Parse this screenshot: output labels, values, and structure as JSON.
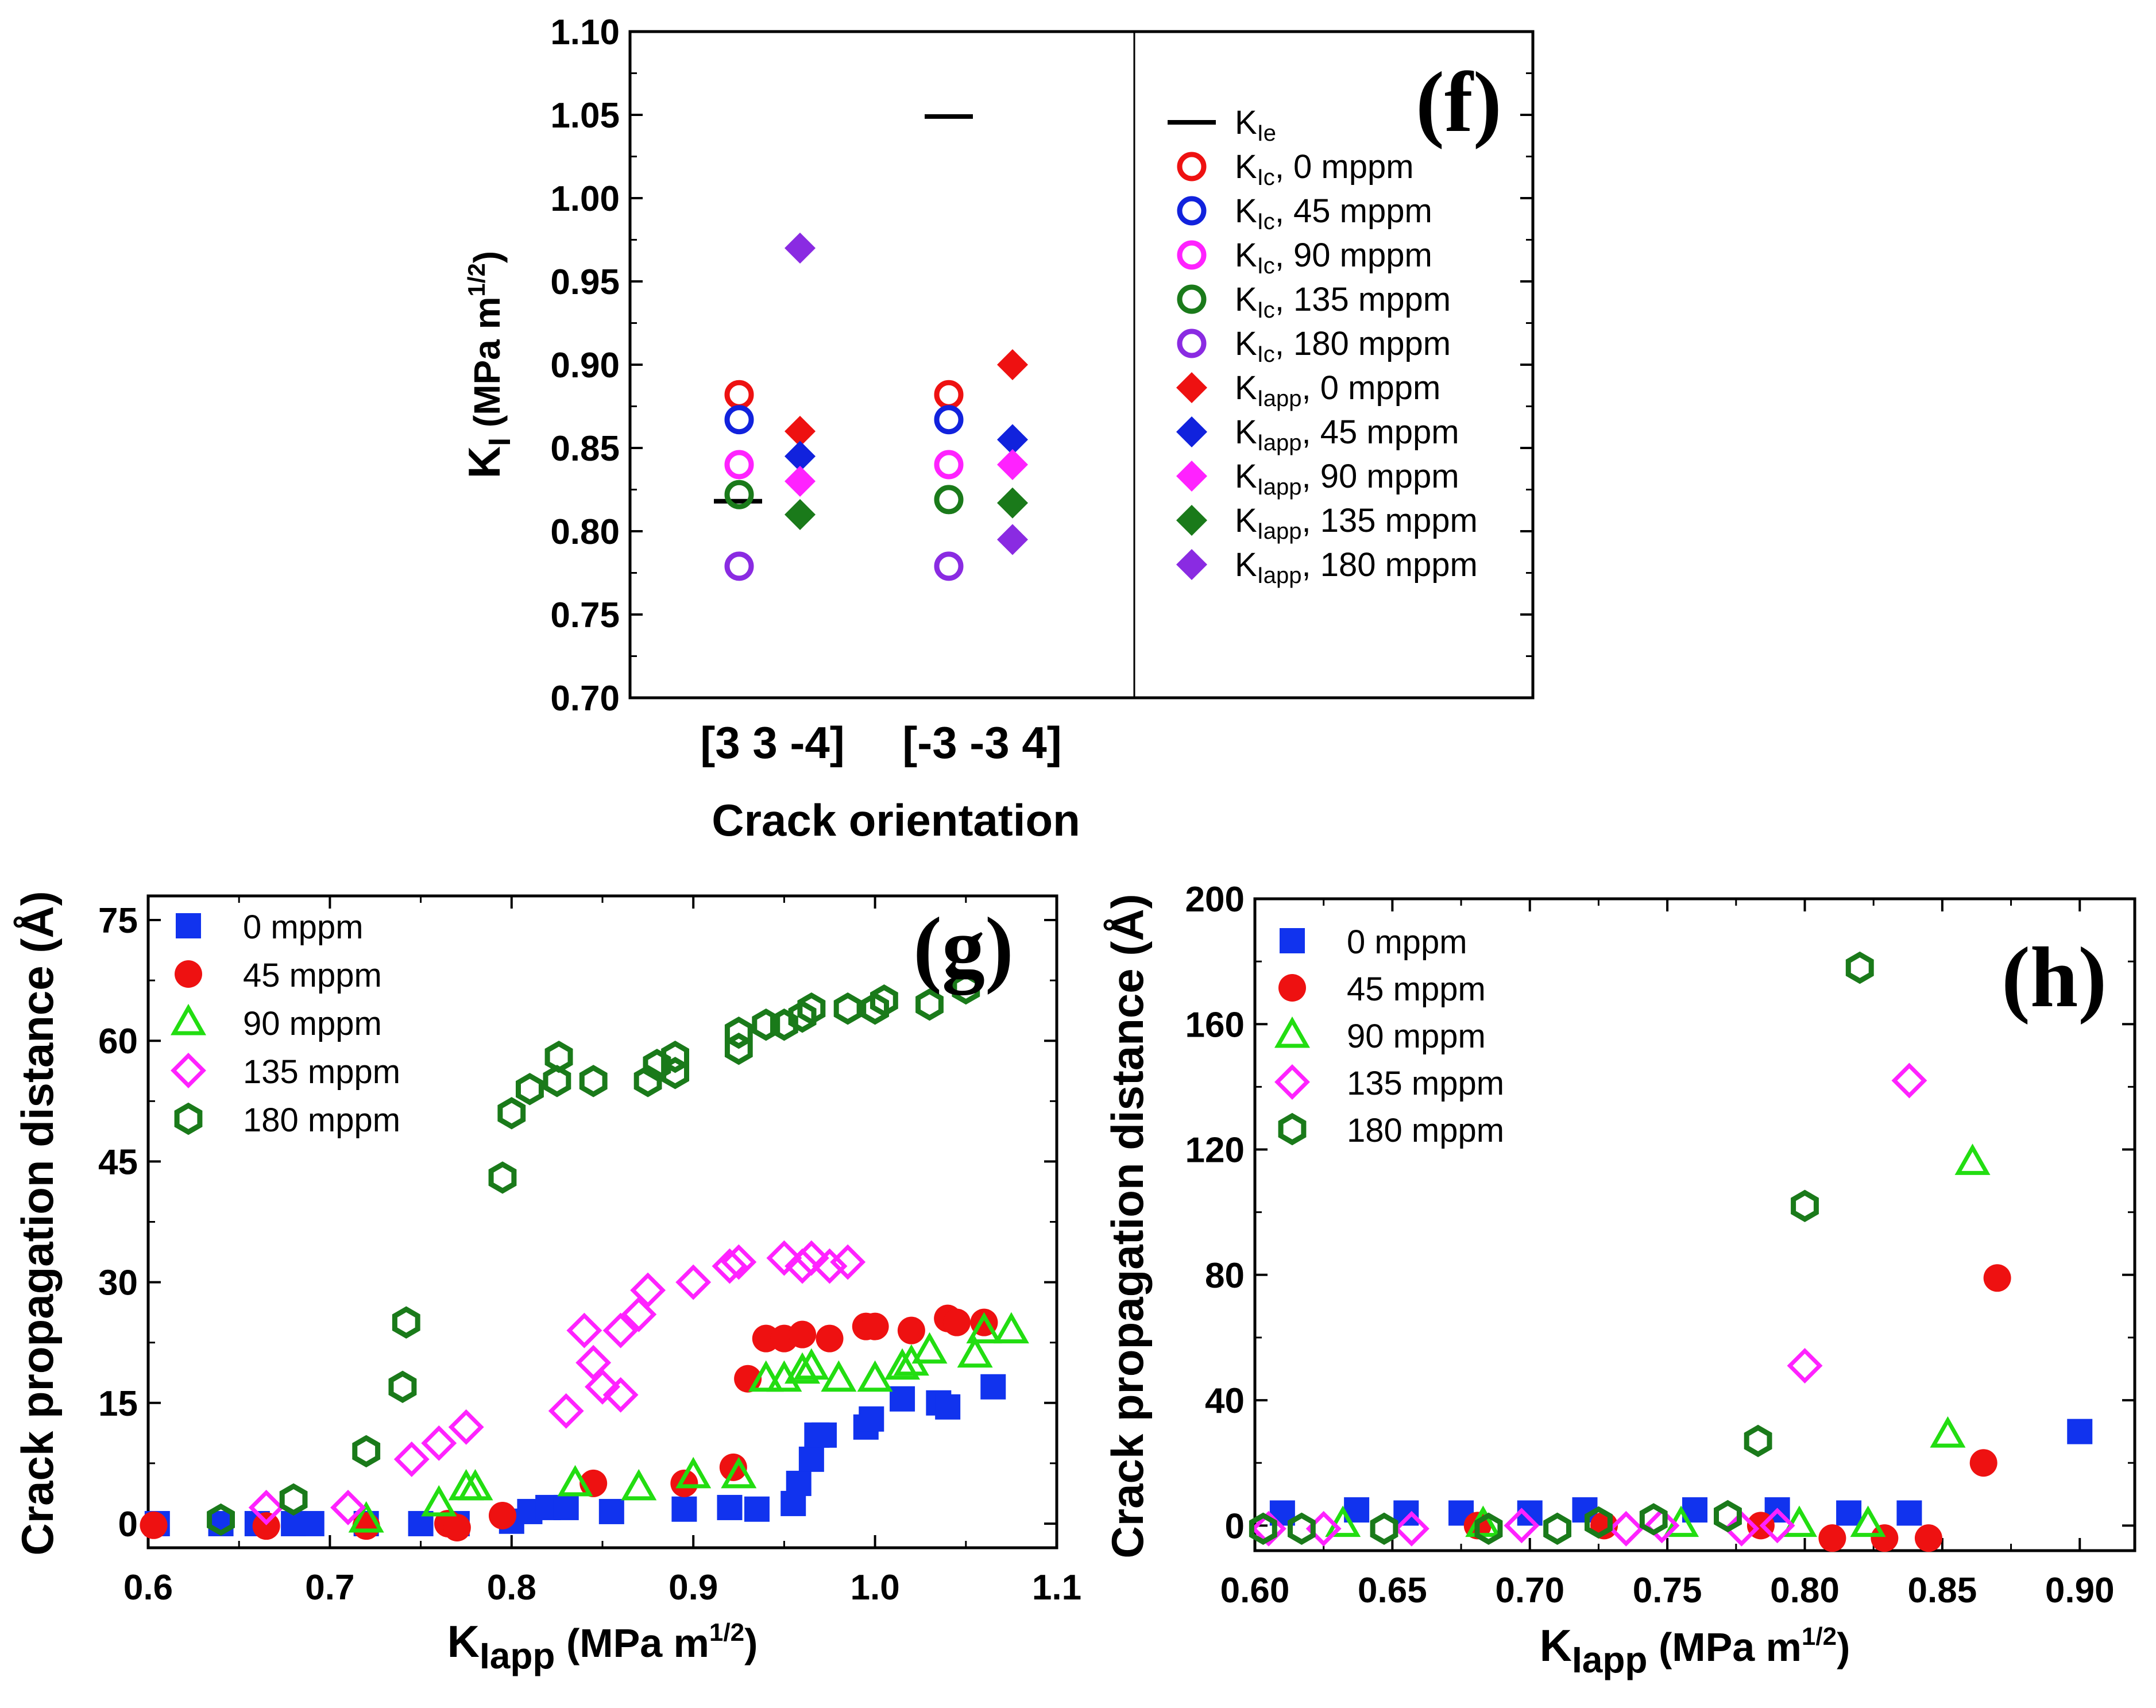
{
  "chart_data": [
    {
      "id": "f",
      "type": "scatter",
      "panel_label": "(f)",
      "xlabel": "Crack orientation",
      "ylabel_main": "K",
      "ylabel_sub": "I",
      "ylabel_units": " (MPa m",
      "ylabel_exp": "1/2",
      "ylabel_close": ")",
      "categories": [
        "[3 3 -4]",
        "[-3 -3 4]"
      ],
      "ylim": [
        0.7,
        1.1
      ],
      "yticks": [
        "0.70",
        "0.75",
        "0.80",
        "0.85",
        "0.90",
        "0.95",
        "1.00",
        "1.05",
        "1.10"
      ],
      "legend_position": "right",
      "series": [
        {
          "name": "Kle",
          "main": "K",
          "sub": "Ie",
          "rest": "",
          "marker": "dash",
          "color": "#000000",
          "values": [
            0.818,
            1.049
          ]
        },
        {
          "name": "KIc, 0 mppm",
          "main": "K",
          "sub": "Ic",
          "rest": ", 0 mppm",
          "marker": "circle-open",
          "color": "#ee1111",
          "values": [
            0.882,
            0.882
          ]
        },
        {
          "name": "KIc, 45 mppm",
          "main": "K",
          "sub": "Ic",
          "rest": ", 45 mppm",
          "marker": "circle-open",
          "color": "#1122dd",
          "values": [
            0.867,
            0.867
          ]
        },
        {
          "name": "KIc, 90 mppm",
          "main": "K",
          "sub": "Ic",
          "rest": ", 90 mppm",
          "marker": "circle-open",
          "color": "#ff22ff",
          "values": [
            0.84,
            0.84
          ]
        },
        {
          "name": "KIc, 135 mppm",
          "main": "K",
          "sub": "Ic",
          "rest": ", 135 mppm",
          "marker": "circle-open",
          "color": "#1a7a1a",
          "values": [
            0.822,
            0.819
          ]
        },
        {
          "name": "KIc, 180 mppm",
          "main": "K",
          "sub": "Ic",
          "rest": ", 180 mppm",
          "marker": "circle-open",
          "color": "#8a2be2",
          "values": [
            0.779,
            0.779
          ]
        },
        {
          "name": "KIapp, 0 mppm",
          "main": "K",
          "sub": "Iapp",
          "rest": ", 0 mppm",
          "marker": "diamond",
          "color": "#ee1111",
          "values": [
            0.86,
            0.9
          ]
        },
        {
          "name": "KIapp, 45 mppm",
          "main": "K",
          "sub": "Iapp",
          "rest": ", 45 mppm",
          "marker": "diamond",
          "color": "#1122dd",
          "values": [
            0.845,
            0.855
          ]
        },
        {
          "name": "KIapp, 90 mppm",
          "main": "K",
          "sub": "Iapp",
          "rest": ", 90 mppm",
          "marker": "diamond",
          "color": "#ff22ff",
          "values": [
            0.83,
            0.84
          ]
        },
        {
          "name": "KIapp, 135 mppm",
          "main": "K",
          "sub": "Iapp",
          "rest": ", 135 mppm",
          "marker": "diamond",
          "color": "#1a7a1a",
          "values": [
            0.81,
            0.817
          ]
        },
        {
          "name": "KIapp, 180 mppm",
          "main": "K",
          "sub": "Iapp",
          "rest": ", 180 mppm",
          "marker": "diamond",
          "color": "#8a2be2",
          "values": [
            0.97,
            0.795
          ]
        }
      ]
    },
    {
      "id": "g",
      "type": "scatter",
      "panel_label": "(g)",
      "xlabel_main": "K",
      "xlabel_sub": "Iapp",
      "xlabel_units": " (MPa m",
      "xlabel_exp": "1/2",
      "xlabel_close": ")",
      "ylabel": "Crack propagation distance (Å)",
      "xlim": [
        0.6,
        1.1
      ],
      "ylim": [
        -3,
        78
      ],
      "xticks": [
        "0.6",
        "0.7",
        "0.8",
        "0.9",
        "1.0",
        "1.1"
      ],
      "yticks": [
        "0",
        "15",
        "30",
        "45",
        "60",
        "75"
      ],
      "legend_position": "top-left",
      "series": [
        {
          "name": "0 mppm",
          "marker": "square",
          "color": "#1133ee",
          "points": [
            [
              0.605,
              0
            ],
            [
              0.64,
              0
            ],
            [
              0.66,
              0
            ],
            [
              0.68,
              0
            ],
            [
              0.69,
              0
            ],
            [
              0.72,
              0
            ],
            [
              0.75,
              0
            ],
            [
              0.77,
              0
            ],
            [
              0.8,
              0.3
            ],
            [
              0.81,
              1.5
            ],
            [
              0.82,
              2
            ],
            [
              0.83,
              2
            ],
            [
              0.855,
              1.5
            ],
            [
              0.895,
              1.8
            ],
            [
              0.92,
              2
            ],
            [
              0.935,
              1.8
            ],
            [
              0.955,
              2.5
            ],
            [
              0.958,
              5
            ],
            [
              0.965,
              8
            ],
            [
              0.968,
              11
            ],
            [
              0.972,
              11
            ],
            [
              0.995,
              12
            ],
            [
              0.998,
              13
            ],
            [
              1.015,
              15.5
            ],
            [
              1.035,
              15
            ],
            [
              1.04,
              14.5
            ],
            [
              1.065,
              17
            ]
          ]
        },
        {
          "name": "45 mppm",
          "marker": "circle",
          "color": "#ee1111",
          "points": [
            [
              0.603,
              -0.2
            ],
            [
              0.665,
              -0.3
            ],
            [
              0.72,
              -0.3
            ],
            [
              0.765,
              0
            ],
            [
              0.77,
              -0.5
            ],
            [
              0.795,
              1
            ],
            [
              0.845,
              5
            ],
            [
              0.895,
              5
            ],
            [
              0.922,
              7
            ],
            [
              0.93,
              18
            ],
            [
              0.94,
              23
            ],
            [
              0.95,
              23
            ],
            [
              0.96,
              23.5
            ],
            [
              0.975,
              23
            ],
            [
              0.995,
              24.5
            ],
            [
              1.0,
              24.5
            ],
            [
              1.02,
              24
            ],
            [
              1.04,
              25.5
            ],
            [
              1.045,
              25
            ],
            [
              1.06,
              25
            ]
          ]
        },
        {
          "name": "90 mppm",
          "marker": "triangle",
          "color": "#22dd11",
          "points": [
            [
              0.72,
              0.5
            ],
            [
              0.76,
              2.5
            ],
            [
              0.775,
              4.5
            ],
            [
              0.78,
              4.5
            ],
            [
              0.835,
              5
            ],
            [
              0.87,
              4.5
            ],
            [
              0.9,
              6
            ],
            [
              0.925,
              6
            ],
            [
              0.94,
              18
            ],
            [
              0.95,
              18
            ],
            [
              0.96,
              19
            ],
            [
              0.965,
              19.5
            ],
            [
              0.98,
              18
            ],
            [
              1.0,
              18
            ],
            [
              1.015,
              19.5
            ],
            [
              1.02,
              20
            ],
            [
              1.03,
              21.5
            ],
            [
              1.055,
              21
            ],
            [
              1.06,
              24
            ],
            [
              1.075,
              24
            ]
          ]
        },
        {
          "name": "135 mppm",
          "marker": "diamond-open",
          "color": "#ff22ff",
          "points": [
            [
              0.665,
              2
            ],
            [
              0.71,
              2
            ],
            [
              0.745,
              8
            ],
            [
              0.76,
              10
            ],
            [
              0.775,
              12
            ],
            [
              0.83,
              14
            ],
            [
              0.84,
              24
            ],
            [
              0.845,
              20
            ],
            [
              0.85,
              17
            ],
            [
              0.86,
              16
            ],
            [
              0.86,
              24
            ],
            [
              0.87,
              26
            ],
            [
              0.875,
              29
            ],
            [
              0.9,
              30
            ],
            [
              0.92,
              32
            ],
            [
              0.925,
              32.5
            ],
            [
              0.95,
              33
            ],
            [
              0.96,
              32
            ],
            [
              0.965,
              33
            ],
            [
              0.975,
              32
            ],
            [
              0.985,
              32.5
            ]
          ]
        },
        {
          "name": "180 mppm",
          "marker": "hexagon",
          "color": "#1a7a1a",
          "points": [
            [
              0.64,
              0.5
            ],
            [
              0.68,
              3
            ],
            [
              0.72,
              9
            ],
            [
              0.74,
              17
            ],
            [
              0.742,
              25
            ],
            [
              0.795,
              43
            ],
            [
              0.8,
              51
            ],
            [
              0.81,
              54
            ],
            [
              0.825,
              55
            ],
            [
              0.826,
              58
            ],
            [
              0.845,
              55
            ],
            [
              0.875,
              55
            ],
            [
              0.88,
              57
            ],
            [
              0.89,
              56
            ],
            [
              0.89,
              58
            ],
            [
              0.925,
              59
            ],
            [
              0.925,
              61
            ],
            [
              0.94,
              62
            ],
            [
              0.95,
              62
            ],
            [
              0.96,
              63
            ],
            [
              0.965,
              64
            ],
            [
              0.985,
              64
            ],
            [
              1.0,
              64
            ],
            [
              1.005,
              65
            ],
            [
              1.03,
              64.5
            ],
            [
              1.05,
              66.5
            ]
          ]
        }
      ]
    },
    {
      "id": "h",
      "type": "scatter",
      "panel_label": "(h)",
      "xlabel_main": "K",
      "xlabel_sub": "Iapp",
      "xlabel_units": " (MPa m",
      "xlabel_exp": "1/2",
      "xlabel_close": ")",
      "ylabel": "Crack propagation distance (Å)",
      "xlim": [
        0.6,
        0.92
      ],
      "ylim": [
        -8,
        200
      ],
      "xticks": [
        "0.60",
        "0.65",
        "0.70",
        "0.75",
        "0.80",
        "0.85",
        "0.90"
      ],
      "yticks": [
        "0",
        "40",
        "80",
        "120",
        "160",
        "200"
      ],
      "legend_position": "top-left",
      "series": [
        {
          "name": "0 mppm",
          "marker": "square",
          "color": "#1133ee",
          "points": [
            [
              0.61,
              4
            ],
            [
              0.637,
              5
            ],
            [
              0.655,
              4
            ],
            [
              0.675,
              4
            ],
            [
              0.7,
              4
            ],
            [
              0.72,
              5
            ],
            [
              0.76,
              5
            ],
            [
              0.79,
              5
            ],
            [
              0.816,
              4
            ],
            [
              0.838,
              4
            ],
            [
              0.9,
              30
            ]
          ]
        },
        {
          "name": "45 mppm",
          "marker": "circle",
          "color": "#ee1111",
          "points": [
            [
              0.681,
              0
            ],
            [
              0.727,
              0
            ],
            [
              0.784,
              0
            ],
            [
              0.81,
              -4
            ],
            [
              0.829,
              -4
            ],
            [
              0.845,
              -4
            ],
            [
              0.865,
              20
            ],
            [
              0.87,
              79
            ]
          ]
        },
        {
          "name": "90 mppm",
          "marker": "triangle",
          "color": "#22dd11",
          "points": [
            [
              0.632,
              0.5
            ],
            [
              0.683,
              0.5
            ],
            [
              0.755,
              0.5
            ],
            [
              0.798,
              0.5
            ],
            [
              0.823,
              0.5
            ],
            [
              0.852,
              29
            ],
            [
              0.861,
              116
            ]
          ]
        },
        {
          "name": "135 mppm",
          "marker": "diamond-open",
          "color": "#ff22ff",
          "points": [
            [
              0.605,
              -1
            ],
            [
              0.625,
              -1
            ],
            [
              0.657,
              -1
            ],
            [
              0.697,
              0
            ],
            [
              0.735,
              -1
            ],
            [
              0.748,
              0
            ],
            [
              0.777,
              -1
            ],
            [
              0.79,
              0
            ],
            [
              0.8,
              51
            ],
            [
              0.838,
              142
            ]
          ]
        },
        {
          "name": "180 mppm",
          "marker": "hexagon",
          "color": "#1a7a1a",
          "points": [
            [
              0.603,
              -1
            ],
            [
              0.617,
              -1
            ],
            [
              0.647,
              -1
            ],
            [
              0.685,
              -1
            ],
            [
              0.71,
              -1
            ],
            [
              0.725,
              1
            ],
            [
              0.745,
              2
            ],
            [
              0.772,
              3
            ],
            [
              0.783,
              27
            ],
            [
              0.8,
              102
            ],
            [
              0.82,
              178
            ]
          ]
        }
      ]
    }
  ]
}
